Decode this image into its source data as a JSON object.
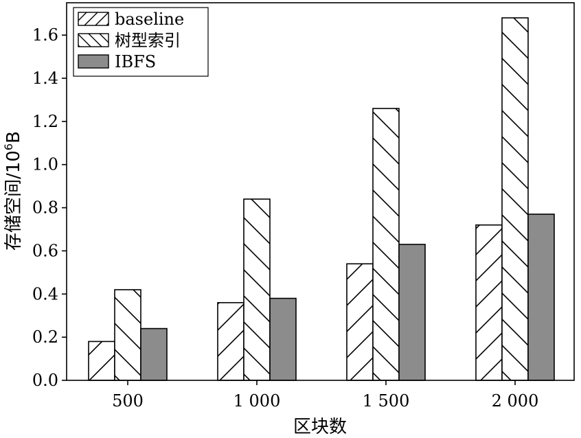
{
  "chart_data": {
    "type": "bar",
    "categories": [
      "500",
      "1 000",
      "1 500",
      "2 000"
    ],
    "series": [
      {
        "name": "baseline",
        "values": [
          0.18,
          0.36,
          0.54,
          0.72
        ],
        "pattern": "forward-hatch",
        "color": "#ffffff"
      },
      {
        "name": "树型索引",
        "values": [
          0.42,
          0.84,
          1.26,
          1.68
        ],
        "pattern": "back-hatch",
        "color": "#ffffff"
      },
      {
        "name": "IBFS",
        "values": [
          0.24,
          0.38,
          0.63,
          0.77
        ],
        "pattern": "solid",
        "color": "#8c8c8c"
      }
    ],
    "xlabel": "区块数",
    "ylabel_main": "存储空间/10",
    "ylabel_sup": "6",
    "ylabel_unit": "B",
    "ylim": [
      0,
      1.75
    ],
    "yticks": [
      "0.0",
      "0.2",
      "0.4",
      "0.6",
      "0.8",
      "1.0",
      "1.2",
      "1.4",
      "1.6"
    ],
    "legend_position": "top-left",
    "grid": false
  }
}
